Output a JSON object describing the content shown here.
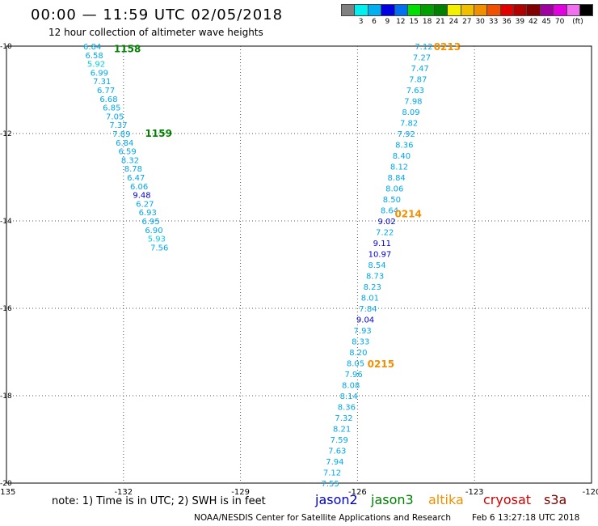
{
  "header": {
    "title": "00:00 — 11:59 UTC 02/05/2018",
    "subtitle": "12 hour collection of altimeter wave heights"
  },
  "colorbar": {
    "colors": [
      "#808080",
      "#00f0f0",
      "#00b0f0",
      "#0000e0",
      "#0070f0",
      "#00e000",
      "#00a000",
      "#008000",
      "#f0f000",
      "#f0c000",
      "#f09000",
      "#f05000",
      "#e00000",
      "#b00000",
      "#800000",
      "#a000a0",
      "#e000e0",
      "#f070f0",
      "#000000"
    ],
    "labels": [
      "3",
      "6",
      "9",
      "12",
      "15",
      "18",
      "21",
      "24",
      "27",
      "30",
      "33",
      "36",
      "39",
      "42",
      "45",
      "70"
    ],
    "unit": "(ft)"
  },
  "chart_data": {
    "type": "scatter",
    "xlim": [
      -135,
      -120
    ],
    "ylim": [
      -20,
      -10
    ],
    "xticks": [
      "-135",
      "-132",
      "-129",
      "-126",
      "-123",
      "-120"
    ],
    "yticks": [
      "-10",
      "-12",
      "-14",
      "-16",
      "-18",
      "-20"
    ],
    "grid": true,
    "passes": [
      {
        "label": "1158",
        "satellite": "jason3",
        "label_pos": [
          -131.9,
          -10.05
        ]
      },
      {
        "label": "1159",
        "satellite": "jason3",
        "label_pos": [
          -131.1,
          -11.98
        ]
      },
      {
        "label": "0213",
        "satellite": "altika",
        "label_pos": [
          -123.7,
          -10.0
        ]
      },
      {
        "label": "0214",
        "satellite": "altika",
        "label_pos": [
          -124.7,
          -13.82
        ]
      },
      {
        "label": "0215",
        "satellite": "altika",
        "label_pos": [
          -125.4,
          -17.26
        ]
      }
    ],
    "series": [
      {
        "satellite": "jason3",
        "values": [
          {
            "x": -132.8,
            "y": -10.0,
            "v": "6.84"
          },
          {
            "x": -132.75,
            "y": -10.2,
            "v": "6.58"
          },
          {
            "x": -132.7,
            "y": -10.4,
            "v": "5.92"
          },
          {
            "x": -132.62,
            "y": -10.6,
            "v": "6.99"
          },
          {
            "x": -132.55,
            "y": -10.8,
            "v": "7.31"
          },
          {
            "x": -132.45,
            "y": -11.0,
            "v": "6.77"
          },
          {
            "x": -132.38,
            "y": -11.2,
            "v": "6.68"
          },
          {
            "x": -132.3,
            "y": -11.4,
            "v": "6.85"
          },
          {
            "x": -132.22,
            "y": -11.6,
            "v": "7.05"
          },
          {
            "x": -132.13,
            "y": -11.8,
            "v": "7.37"
          },
          {
            "x": -132.05,
            "y": -12.0,
            "v": "7.89"
          },
          {
            "x": -131.97,
            "y": -12.2,
            "v": "6.84"
          },
          {
            "x": -131.9,
            "y": -12.4,
            "v": "6.59"
          },
          {
            "x": -131.83,
            "y": -12.6,
            "v": "8.32"
          },
          {
            "x": -131.75,
            "y": -12.8,
            "v": "8.78"
          },
          {
            "x": -131.68,
            "y": -13.0,
            "v": "6.47"
          },
          {
            "x": -131.6,
            "y": -13.2,
            "v": "6.06"
          },
          {
            "x": -131.53,
            "y": -13.4,
            "v": "9.48"
          },
          {
            "x": -131.45,
            "y": -13.6,
            "v": "6.27"
          },
          {
            "x": -131.38,
            "y": -13.8,
            "v": "6.93"
          },
          {
            "x": -131.3,
            "y": -14.0,
            "v": "6.95"
          },
          {
            "x": -131.22,
            "y": -14.2,
            "v": "6.90"
          },
          {
            "x": -131.15,
            "y": -14.4,
            "v": "5.93"
          },
          {
            "x": -131.08,
            "y": -14.6,
            "v": "7.56"
          }
        ]
      },
      {
        "satellite": "altika",
        "values": [
          {
            "x": -124.3,
            "y": -10.0,
            "v": "7.12"
          },
          {
            "x": -124.35,
            "y": -10.25,
            "v": "7.27"
          },
          {
            "x": -124.4,
            "y": -10.5,
            "v": "7.47"
          },
          {
            "x": -124.45,
            "y": -10.75,
            "v": "7.87"
          },
          {
            "x": -124.52,
            "y": -11.0,
            "v": "7.63"
          },
          {
            "x": -124.57,
            "y": -11.25,
            "v": "7.98"
          },
          {
            "x": -124.63,
            "y": -11.5,
            "v": "8.09"
          },
          {
            "x": -124.68,
            "y": -11.75,
            "v": "7.82"
          },
          {
            "x": -124.75,
            "y": -12.0,
            "v": "7.92"
          },
          {
            "x": -124.8,
            "y": -12.25,
            "v": "8.36"
          },
          {
            "x": -124.87,
            "y": -12.5,
            "v": "8.40"
          },
          {
            "x": -124.93,
            "y": -12.75,
            "v": "8.12"
          },
          {
            "x": -125.0,
            "y": -13.0,
            "v": "8.84"
          },
          {
            "x": -125.05,
            "y": -13.25,
            "v": "8.06"
          },
          {
            "x": -125.12,
            "y": -13.5,
            "v": "8.50"
          },
          {
            "x": -125.18,
            "y": -13.75,
            "v": "8.64"
          },
          {
            "x": -125.25,
            "y": -14.0,
            "v": "9.02"
          },
          {
            "x": -125.3,
            "y": -14.25,
            "v": "7.22"
          },
          {
            "x": -125.37,
            "y": -14.5,
            "v": "9.11"
          },
          {
            "x": -125.43,
            "y": -14.75,
            "v": "10.97"
          },
          {
            "x": -125.5,
            "y": -15.0,
            "v": "8.54"
          },
          {
            "x": -125.55,
            "y": -15.25,
            "v": "8.73"
          },
          {
            "x": -125.62,
            "y": -15.5,
            "v": "8.23"
          },
          {
            "x": -125.68,
            "y": -15.75,
            "v": "8.01"
          },
          {
            "x": -125.73,
            "y": -16.0,
            "v": "7.84"
          },
          {
            "x": -125.8,
            "y": -16.25,
            "v": "9.04"
          },
          {
            "x": -125.87,
            "y": -16.5,
            "v": "7.93"
          },
          {
            "x": -125.92,
            "y": -16.75,
            "v": "8.33"
          },
          {
            "x": -125.98,
            "y": -17.0,
            "v": "8.20"
          },
          {
            "x": -126.05,
            "y": -17.25,
            "v": "8.05"
          },
          {
            "x": -126.1,
            "y": -17.5,
            "v": "7.96"
          },
          {
            "x": -126.17,
            "y": -17.75,
            "v": "8.08"
          },
          {
            "x": -126.22,
            "y": -18.0,
            "v": "8.14"
          },
          {
            "x": -126.28,
            "y": -18.25,
            "v": "8.36"
          },
          {
            "x": -126.35,
            "y": -18.5,
            "v": "7.32"
          },
          {
            "x": -126.4,
            "y": -18.75,
            "v": "8.21"
          },
          {
            "x": -126.47,
            "y": -19.0,
            "v": "7.59"
          },
          {
            "x": -126.52,
            "y": -19.25,
            "v": "7.63"
          },
          {
            "x": -126.58,
            "y": -19.5,
            "v": "7.94"
          },
          {
            "x": -126.65,
            "y": -19.75,
            "v": "7.12"
          },
          {
            "x": -126.7,
            "y": -20.0,
            "v": "7.55"
          }
        ]
      }
    ]
  },
  "note": "note: 1) Time is in UTC; 2) SWH is in feet",
  "legend": [
    {
      "name": "jason2",
      "color": "#0000d0"
    },
    {
      "name": "jason3",
      "color": "#008000"
    },
    {
      "name": "altika",
      "color": "#f09000"
    },
    {
      "name": "cryosat",
      "color": "#d00000"
    },
    {
      "name": "s3a",
      "color": "#800000"
    }
  ],
  "footer": {
    "credit": "NOAA/NESDIS Center for Satellite Applications and Research",
    "timestamp": "Feb  6 13:27:18 UTC 2018"
  }
}
